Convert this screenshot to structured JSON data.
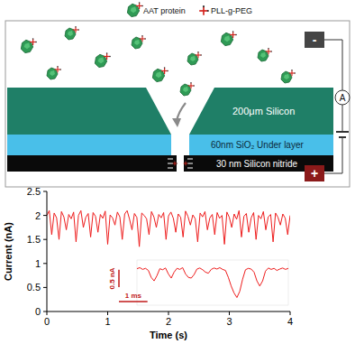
{
  "diagram": {
    "legend": [
      {
        "label": "AAT protein"
      },
      {
        "label": "PLL-g-PEG"
      }
    ],
    "layers": [
      "200μm Silicon",
      "60nm SiO₂ Under layer",
      "30 nm Silicon nitride"
    ],
    "electrodes": [
      "-",
      "+"
    ],
    "ammeter": "A"
  },
  "chart_data": [
    {
      "type": "line",
      "x_label": "Time (s)",
      "y_label": "Current (nA)",
      "color": "#ee1c1c",
      "xlim": [
        0,
        4
      ],
      "xticks": [
        0,
        1,
        2,
        3,
        4
      ],
      "ylim": [
        0,
        2.5
      ],
      "yticks": [
        0,
        0.5,
        1,
        1.5,
        2,
        2.5
      ],
      "x": [
        0,
        0.04,
        0.08,
        0.12,
        0.16,
        0.2,
        0.24,
        0.28,
        0.32,
        0.36,
        0.4,
        0.44,
        0.48,
        0.52,
        0.56,
        0.6,
        0.64,
        0.68,
        0.72,
        0.76,
        0.8,
        0.84,
        0.88,
        0.92,
        0.96,
        1,
        1.04,
        1.08,
        1.12,
        1.16,
        1.2,
        1.24,
        1.28,
        1.32,
        1.36,
        1.4,
        1.44,
        1.48,
        1.52,
        1.56,
        1.6,
        1.64,
        1.68,
        1.72,
        1.76,
        1.8,
        1.84,
        1.88,
        1.92,
        1.96,
        2,
        2.04,
        2.08,
        2.12,
        2.16,
        2.2,
        2.24,
        2.28,
        2.32,
        2.36,
        2.4,
        2.44,
        2.48,
        2.52,
        2.56,
        2.6,
        2.64,
        2.68,
        2.72,
        2.76,
        2.8,
        2.84,
        2.88,
        2.92,
        2.96,
        3,
        3.04,
        3.08,
        3.12,
        3.16,
        3.2,
        3.24,
        3.28,
        3.32,
        3.36,
        3.4,
        3.44,
        3.48,
        3.52,
        3.56,
        3.6,
        3.64,
        3.68,
        3.72,
        3.76,
        3.8,
        3.84,
        3.88,
        3.92,
        3.96,
        4
      ],
      "values": [
        2.0,
        2.1,
        1.6,
        2.05,
        1.95,
        1.5,
        2.08,
        1.97,
        1.7,
        2.02,
        1.93,
        2.07,
        1.45,
        2.0,
        2.1,
        1.75,
        1.96,
        2.04,
        1.55,
        2.06,
        1.98,
        1.65,
        2.02,
        1.94,
        2.09,
        1.4,
        2.01,
        1.95,
        1.8,
        2.07,
        1.97,
        1.5,
        2.03,
        2.1,
        1.92,
        1.7,
        2.04,
        1.96,
        1.35,
        2.05,
        2.0,
        1.93,
        1.6,
        2.08,
        1.97,
        1.75,
        2.02,
        1.95,
        2.06,
        1.5,
        1.99,
        2.07,
        1.94,
        1.65,
        2.03,
        1.96,
        1.55,
        2.09,
        1.98,
        1.8,
        2.01,
        1.93,
        1.45,
        2.05,
        1.97,
        2.08,
        1.7,
        1.95,
        2.02,
        1.6,
        2.06,
        1.94,
        2.0,
        1.4,
        2.07,
        1.96,
        1.75,
        2.03,
        1.92,
        2.1,
        1.55,
        1.98,
        2.04,
        1.65,
        1.95,
        2.06,
        1.5,
        2.0,
        1.93,
        2.08,
        1.7,
        1.97,
        2.02,
        1.45,
        2.05,
        1.96,
        1.8,
        2.03,
        1.94,
        1.6,
        2.0
      ]
    },
    {
      "type": "line",
      "color": "#ee1c1c",
      "tick_labels": false,
      "xlim": [
        0,
        5.3
      ],
      "ylim": [
        0.9,
        2.2
      ],
      "x": [
        0,
        0.1,
        0.2,
        0.3,
        0.4,
        0.5,
        0.6,
        0.7,
        0.8,
        0.9,
        1,
        1.1,
        1.2,
        1.3,
        1.4,
        1.5,
        1.6,
        1.7,
        1.8,
        1.9,
        2,
        2.1,
        2.2,
        2.3,
        2.4,
        2.5,
        2.6,
        2.7,
        2.8,
        2.9,
        3,
        3.1,
        3.2,
        3.3,
        3.4,
        3.5,
        3.6,
        3.7,
        3.8,
        3.9,
        4,
        4.1,
        4.2,
        4.3,
        4.4,
        4.5,
        4.6,
        4.7,
        4.8,
        4.9,
        5,
        5.1,
        5.2,
        5.3
      ],
      "values": [
        1.95,
        1.98,
        1.93,
        1.96,
        1.9,
        1.7,
        1.6,
        1.75,
        1.95,
        1.92,
        1.97,
        1.8,
        1.68,
        1.85,
        1.96,
        1.93,
        1.98,
        1.8,
        1.7,
        1.68,
        1.78,
        1.94,
        1.97,
        1.92,
        1.85,
        1.82,
        1.93,
        1.97,
        1.94,
        1.98,
        1.93,
        1.9,
        1.7,
        1.45,
        1.25,
        1.12,
        1.3,
        1.65,
        1.92,
        1.96,
        1.94,
        1.85,
        1.6,
        1.45,
        1.6,
        1.88,
        1.97,
        1.93,
        1.96,
        1.9,
        1.94,
        1.97,
        1.93,
        1.96
      ],
      "scale_bars": [
        {
          "label": "0.5 nA",
          "value": 0.5
        },
        {
          "label": "1 ms",
          "value": 1
        }
      ]
    }
  ]
}
